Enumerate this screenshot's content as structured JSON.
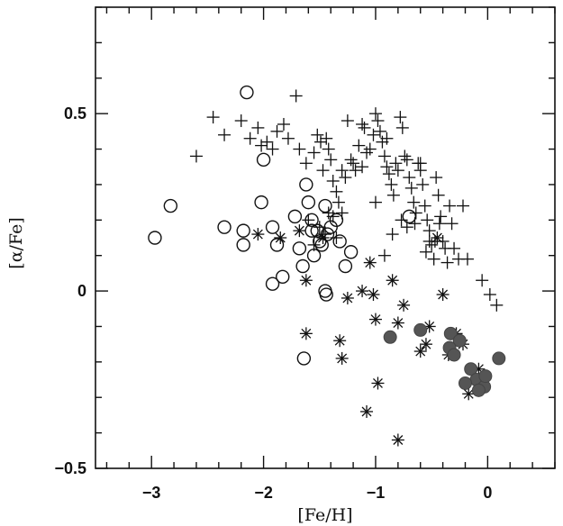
{
  "chart_data": {
    "type": "scatter",
    "title": "",
    "xlabel": "[Fe/H]",
    "ylabel": "[α/Fe]",
    "xlim": [
      -3.5,
      0.6
    ],
    "ylim": [
      -0.5,
      0.8
    ],
    "x_ticks": [
      {
        "value": -3,
        "label": "−3"
      },
      {
        "value": -2,
        "label": "−2"
      },
      {
        "value": -1,
        "label": "−1"
      },
      {
        "value": 0,
        "label": "0"
      }
    ],
    "y_ticks": [
      {
        "value": -0.5,
        "label": "−0.5"
      },
      {
        "value": 0,
        "label": "0"
      },
      {
        "value": 0.5,
        "label": "0.5"
      }
    ],
    "grid": false,
    "legend": "none",
    "colors": {
      "ink": "#111111",
      "filled": "#555555"
    },
    "series": [
      {
        "marker": "plus",
        "points": [
          [
            -2.6,
            0.38
          ],
          [
            -2.45,
            0.49
          ],
          [
            -2.35,
            0.44
          ],
          [
            -2.2,
            0.48
          ],
          [
            -2.12,
            0.43
          ],
          [
            -2.05,
            0.46
          ],
          [
            -2.02,
            0.41
          ],
          [
            -1.97,
            0.42
          ],
          [
            -1.92,
            0.4
          ],
          [
            -1.88,
            0.45
          ],
          [
            -1.82,
            0.47
          ],
          [
            -1.78,
            0.43
          ],
          [
            -1.71,
            0.55
          ],
          [
            -1.68,
            0.4
          ],
          [
            -1.62,
            0.36
          ],
          [
            -1.55,
            0.39
          ],
          [
            -1.52,
            0.44
          ],
          [
            -1.49,
            0.42
          ],
          [
            -1.47,
            0.34
          ],
          [
            -1.44,
            0.43
          ],
          [
            -1.42,
            0.4
          ],
          [
            -1.4,
            0.37
          ],
          [
            -1.38,
            0.31
          ],
          [
            -1.35,
            0.28
          ],
          [
            -1.33,
            0.25
          ],
          [
            -1.3,
            0.34
          ],
          [
            -1.27,
            0.32
          ],
          [
            -1.25,
            0.48
          ],
          [
            -1.22,
            0.37
          ],
          [
            -1.2,
            0.36
          ],
          [
            -1.18,
            0.34
          ],
          [
            -1.15,
            0.41
          ],
          [
            -1.12,
            0.35
          ],
          [
            -1.1,
            0.46
          ],
          [
            -1.08,
            0.39
          ],
          [
            -1.05,
            0.4
          ],
          [
            -1.02,
            0.44
          ],
          [
            -1.0,
            0.5
          ],
          [
            -0.98,
            0.48
          ],
          [
            -0.96,
            0.45
          ],
          [
            -0.94,
            0.42
          ],
          [
            -0.92,
            0.38
          ],
          [
            -0.9,
            0.35
          ],
          [
            -0.88,
            0.33
          ],
          [
            -0.86,
            0.3
          ],
          [
            -0.84,
            0.27
          ],
          [
            -0.82,
            0.36
          ],
          [
            -0.8,
            0.34
          ],
          [
            -0.78,
            0.49
          ],
          [
            -0.76,
            0.46
          ],
          [
            -0.74,
            0.38
          ],
          [
            -0.72,
            0.37
          ],
          [
            -0.7,
            0.32
          ],
          [
            -0.68,
            0.29
          ],
          [
            -0.66,
            0.25
          ],
          [
            -0.64,
            0.22
          ],
          [
            -0.62,
            0.36
          ],
          [
            -0.6,
            0.34
          ],
          [
            -0.58,
            0.3
          ],
          [
            -0.56,
            0.24
          ],
          [
            -0.54,
            0.2
          ],
          [
            -0.52,
            0.17
          ],
          [
            -0.5,
            0.13
          ],
          [
            -0.48,
            0.09
          ],
          [
            -0.46,
            0.32
          ],
          [
            -0.44,
            0.27
          ],
          [
            -0.42,
            0.21
          ],
          [
            -0.4,
            0.14
          ],
          [
            -0.38,
            0.12
          ],
          [
            -0.36,
            0.08
          ],
          [
            -0.34,
            0.24
          ],
          [
            -0.32,
            0.19
          ],
          [
            -0.3,
            0.12
          ],
          [
            -0.26,
            0.09
          ],
          [
            -0.22,
            0.24
          ],
          [
            -0.18,
            0.09
          ],
          [
            -1.6,
            0.2
          ],
          [
            -1.55,
            0.13
          ],
          [
            -1.5,
            0.18
          ],
          [
            -1.45,
            0.16
          ],
          [
            -1.42,
            0.22
          ],
          [
            -1.38,
            0.21
          ],
          [
            -1.35,
            0.15
          ],
          [
            -1.0,
            0.25
          ],
          [
            -0.92,
            0.1
          ],
          [
            -0.85,
            0.16
          ],
          [
            -0.72,
            0.18
          ],
          [
            -0.55,
            0.11
          ],
          [
            -0.52,
            0.14
          ],
          [
            -0.05,
            0.03
          ],
          [
            0.02,
            -0.01
          ],
          [
            0.08,
            -0.04
          ],
          [
            -0.9,
            0.43
          ],
          [
            -0.6,
            0.36
          ],
          [
            -1.12,
            0.47
          ],
          [
            -1.3,
            0.22
          ],
          [
            -0.77,
            0.2
          ],
          [
            -0.65,
            0.19
          ],
          [
            -0.47,
            0.14
          ],
          [
            -0.43,
            0.19
          ]
        ]
      },
      {
        "marker": "open-circle",
        "points": [
          [
            -2.15,
            0.56
          ],
          [
            -2.83,
            0.24
          ],
          [
            -2.97,
            0.15
          ],
          [
            -2.0,
            0.37
          ],
          [
            -1.62,
            0.3
          ],
          [
            -2.35,
            0.18
          ],
          [
            -2.18,
            0.17
          ],
          [
            -2.18,
            0.13
          ],
          [
            -2.02,
            0.25
          ],
          [
            -1.92,
            0.18
          ],
          [
            -1.88,
            0.13
          ],
          [
            -1.83,
            0.04
          ],
          [
            -1.92,
            0.02
          ],
          [
            -1.6,
            0.25
          ],
          [
            -1.72,
            0.21
          ],
          [
            -1.57,
            0.2
          ],
          [
            -1.57,
            0.17
          ],
          [
            -1.52,
            0.17
          ],
          [
            -1.45,
            0.24
          ],
          [
            -1.4,
            0.18
          ],
          [
            -1.35,
            0.2
          ],
          [
            -1.48,
            0.13
          ],
          [
            -1.43,
            0.16
          ],
          [
            -1.32,
            0.14
          ],
          [
            -1.22,
            0.11
          ],
          [
            -1.27,
            0.07
          ],
          [
            -1.65,
            0.07
          ],
          [
            -1.68,
            0.12
          ],
          [
            -1.45,
            0.0
          ],
          [
            -1.44,
            -0.01
          ],
          [
            -1.64,
            -0.19
          ],
          [
            -0.7,
            0.21
          ],
          [
            -1.55,
            0.1
          ],
          [
            -1.5,
            0.14
          ]
        ]
      },
      {
        "marker": "asterisk",
        "points": [
          [
            -2.05,
            0.16
          ],
          [
            -1.85,
            0.15
          ],
          [
            -1.68,
            0.17
          ],
          [
            -1.62,
            0.03
          ],
          [
            -1.62,
            -0.12
          ],
          [
            -1.47,
            0.15
          ],
          [
            -1.32,
            -0.14
          ],
          [
            -1.3,
            -0.19
          ],
          [
            -1.25,
            -0.02
          ],
          [
            -1.12,
            0.0
          ],
          [
            -1.05,
            0.08
          ],
          [
            -1.02,
            -0.01
          ],
          [
            -1.0,
            -0.08
          ],
          [
            -0.98,
            -0.26
          ],
          [
            -1.08,
            -0.34
          ],
          [
            -0.85,
            0.03
          ],
          [
            -0.8,
            -0.09
          ],
          [
            -0.75,
            -0.04
          ],
          [
            -0.6,
            -0.17
          ],
          [
            -0.55,
            -0.15
          ],
          [
            -0.45,
            0.15
          ],
          [
            -0.4,
            -0.01
          ],
          [
            -0.35,
            -0.18
          ],
          [
            -0.28,
            -0.12
          ],
          [
            -0.22,
            -0.15
          ],
          [
            -0.17,
            -0.29
          ],
          [
            -0.8,
            -0.42
          ],
          [
            -0.52,
            -0.1
          ],
          [
            -0.08,
            -0.22
          ]
        ]
      },
      {
        "marker": "filled-circle",
        "points": [
          [
            -0.87,
            -0.13
          ],
          [
            -0.6,
            -0.11
          ],
          [
            -0.33,
            -0.12
          ],
          [
            -0.25,
            -0.14
          ],
          [
            -0.34,
            -0.16
          ],
          [
            -0.3,
            -0.18
          ],
          [
            -0.15,
            -0.22
          ],
          [
            -0.05,
            -0.25
          ],
          [
            -0.1,
            -0.25
          ],
          [
            -0.03,
            -0.27
          ],
          [
            0.1,
            -0.19
          ],
          [
            -0.08,
            -0.28
          ],
          [
            -0.02,
            -0.24
          ],
          [
            -0.2,
            -0.26
          ]
        ]
      }
    ]
  }
}
